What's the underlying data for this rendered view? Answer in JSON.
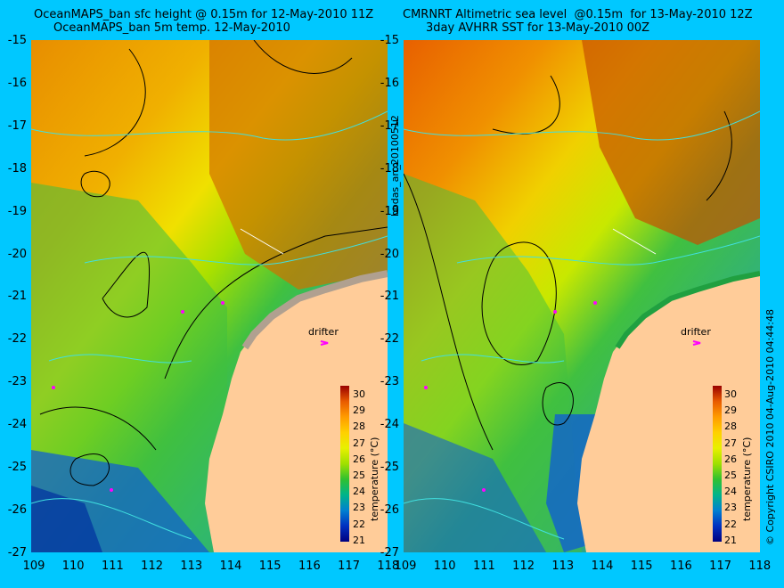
{
  "titles": {
    "left_line1": "OceanMAPS_ban sfc height @ 0.15m for 12-May-2010 11Z",
    "left_line2": "OceanMAPS_ban 5m temp. 12-May-2010",
    "right_line1": "CMRNRT Altimetric sea level  @0.15m  for 13-May-2010 12Z",
    "right_line2": "3day AVHRR SST for 13-May-2010 00Z"
  },
  "axes": {
    "lat_ticks": [
      "-15",
      "-16",
      "-17",
      "-18",
      "-19",
      "-20",
      "-21",
      "-22",
      "-23",
      "-24",
      "-25",
      "-26",
      "-27"
    ],
    "lon_ticks": [
      "109",
      "110",
      "111",
      "112",
      "113",
      "114",
      "115",
      "116",
      "117",
      "118"
    ]
  },
  "side_labels": {
    "middle": "bodas_an_20100512",
    "right": "© Copyright CSIRO 2010  04-Aug-2010 04:44:48"
  },
  "drifter_label": "drifter",
  "colorbar": {
    "label": "temperature (°C)",
    "ticks": [
      "30",
      "29",
      "28",
      "27",
      "26",
      "25",
      "24",
      "23",
      "22",
      "21"
    ],
    "colors": [
      "#990000",
      "#e85a00",
      "#ff9c00",
      "#ffd000",
      "#e8f000",
      "#a0e000",
      "#30c030",
      "#00b48a",
      "#0080d0",
      "#0030c0",
      "#000080"
    ]
  },
  "map_colors": {
    "warm": "#d27800",
    "mid": "#f0a800",
    "yellow": "#f0e000",
    "green": "#40c040",
    "teal": "#20b0a0",
    "blue": "#1060d0",
    "land": "#ffcc99",
    "coast_grey": "#b0a090"
  }
}
